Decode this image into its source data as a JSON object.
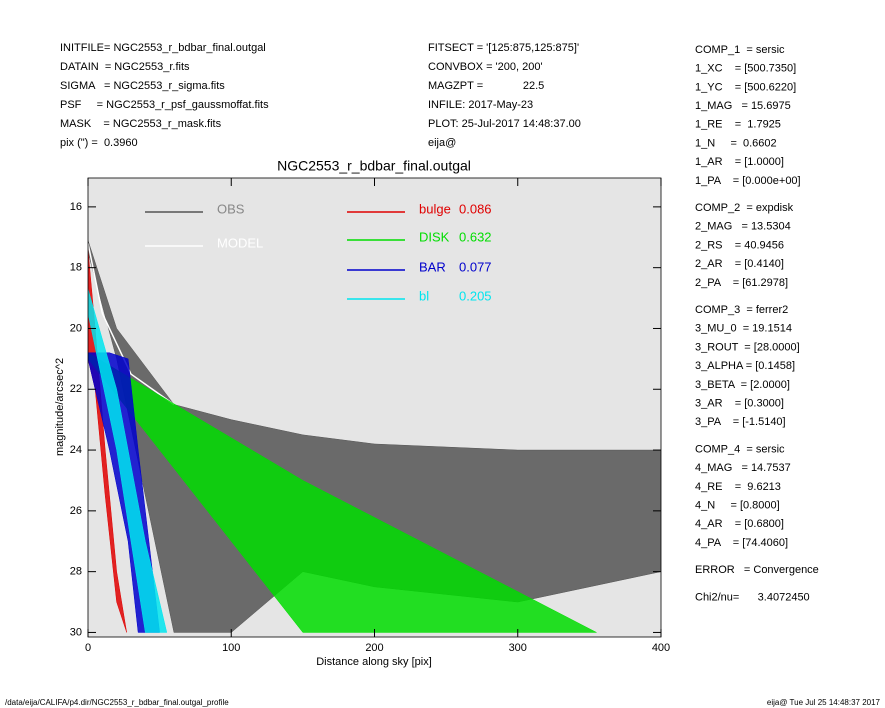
{
  "header": {
    "left": [
      "INITFILE= NGC2553_r_bdbar_final.outgal",
      "DATAIN  = NGC2553_r.fits",
      "SIGMA   = NGC2553_r_sigma.fits",
      "PSF     = NGC2553_r_psf_gaussmoffat.fits",
      "MASK    = NGC2553_r_mask.fits",
      "pix (\") =  0.3960"
    ],
    "middle": [
      "FITSECT = '[125:875,125:875]'",
      "CONVBOX = '200, 200'",
      "MAGZPT =             22.5",
      "INFILE: 2017-May-23",
      "PLOT: 25-Jul-2017 14:48:37.00",
      "eija@"
    ],
    "right": [
      [
        "COMP_1  = sersic",
        "1_XC    = [500.7350]",
        "1_YC    = [500.6220]",
        "1_MAG   = 15.6975",
        "1_RE    =  1.7925",
        "1_N     =  0.6602",
        "1_AR    = [1.0000]",
        "1_PA    = [0.000e+00]"
      ],
      [
        "COMP_2  = expdisk",
        "2_MAG   = 13.5304",
        "2_RS    = 40.9456",
        "2_AR    = [0.4140]",
        "2_PA    = [61.2978]"
      ],
      [
        "COMP_3  = ferrer2",
        "3_MU_0  = 19.1514",
        "3_ROUT  = [28.0000]",
        "3_ALPHA = [0.1458]",
        "3_BETA  = [2.0000]",
        "3_AR    = [0.3000]",
        "3_PA    = [-1.5140]"
      ],
      [
        "COMP_4  = sersic",
        "4_MAG   = 14.7537",
        "4_RE    =  9.6213",
        "4_N     = [0.8000]",
        "4_AR    = [0.6800]",
        "4_PA    = [74.4060]"
      ],
      [
        "ERROR   = Convergence"
      ],
      [
        "Chi2/nu=      3.4072450"
      ]
    ]
  },
  "footer": {
    "left": "/data/eija/CALIFA/p4.dir/NGC2553_r_bdbar_final.outgal_profile",
    "right": "eija@  Tue Jul 25 14:48:37 2017"
  },
  "chart_data": {
    "type": "band",
    "title": "NGC2553_r_bdbar_final.outgal",
    "x_label": "Distance along sky [pix]",
    "y_label": "magnitude/arcsec^2",
    "xlim": [
      0,
      400
    ],
    "ylim": [
      30.15,
      15.05
    ],
    "xticks": [
      0,
      100,
      200,
      300,
      400
    ],
    "yticks": [
      16,
      18,
      20,
      22,
      24,
      26,
      28,
      30
    ],
    "background": "#e5e5e5",
    "series": [
      {
        "name": "OBS",
        "color": "#555555",
        "x": [
          0,
          20,
          60,
          100,
          150,
          200,
          300,
          400
        ],
        "values": [
          17.1,
          20,
          22.5,
          23,
          23.5,
          23.8,
          24,
          24
        ],
        "values2": [
          17.5,
          21,
          30,
          30,
          28,
          28.5,
          29,
          28
        ]
      },
      {
        "name": "MODEL",
        "color": "#ffffff",
        "x": [
          0,
          10,
          30,
          60
        ],
        "values": [
          17.2,
          19.5,
          21.5,
          22.5
        ]
      },
      {
        "name": "bulge",
        "fraction": 0.086,
        "color": "#e00000",
        "x": [
          0,
          5,
          12,
          20,
          27
        ],
        "values": [
          17.4,
          20,
          24,
          28,
          30
        ],
        "values2": [
          21,
          22,
          25.5,
          29,
          30
        ]
      },
      {
        "name": "DISK",
        "fraction": 0.632,
        "color": "#00dd00",
        "x": [
          0,
          150,
          355
        ],
        "values": [
          20.8,
          25,
          30
        ],
        "values2": [
          21,
          30,
          30
        ]
      },
      {
        "name": "BAR",
        "fraction": 0.077,
        "color": "#0000cc",
        "x": [
          0,
          15,
          28,
          35,
          50
        ],
        "values": [
          20.8,
          20.8,
          21,
          24,
          30
        ],
        "values2": [
          21,
          24,
          27,
          30,
          30
        ]
      },
      {
        "name": "bl",
        "fraction": 0.205,
        "color": "#00e5ee",
        "x": [
          0,
          20,
          40,
          55
        ],
        "values": [
          18.7,
          22,
          27,
          30
        ],
        "values2": [
          19.5,
          24,
          30,
          30
        ]
      }
    ]
  }
}
